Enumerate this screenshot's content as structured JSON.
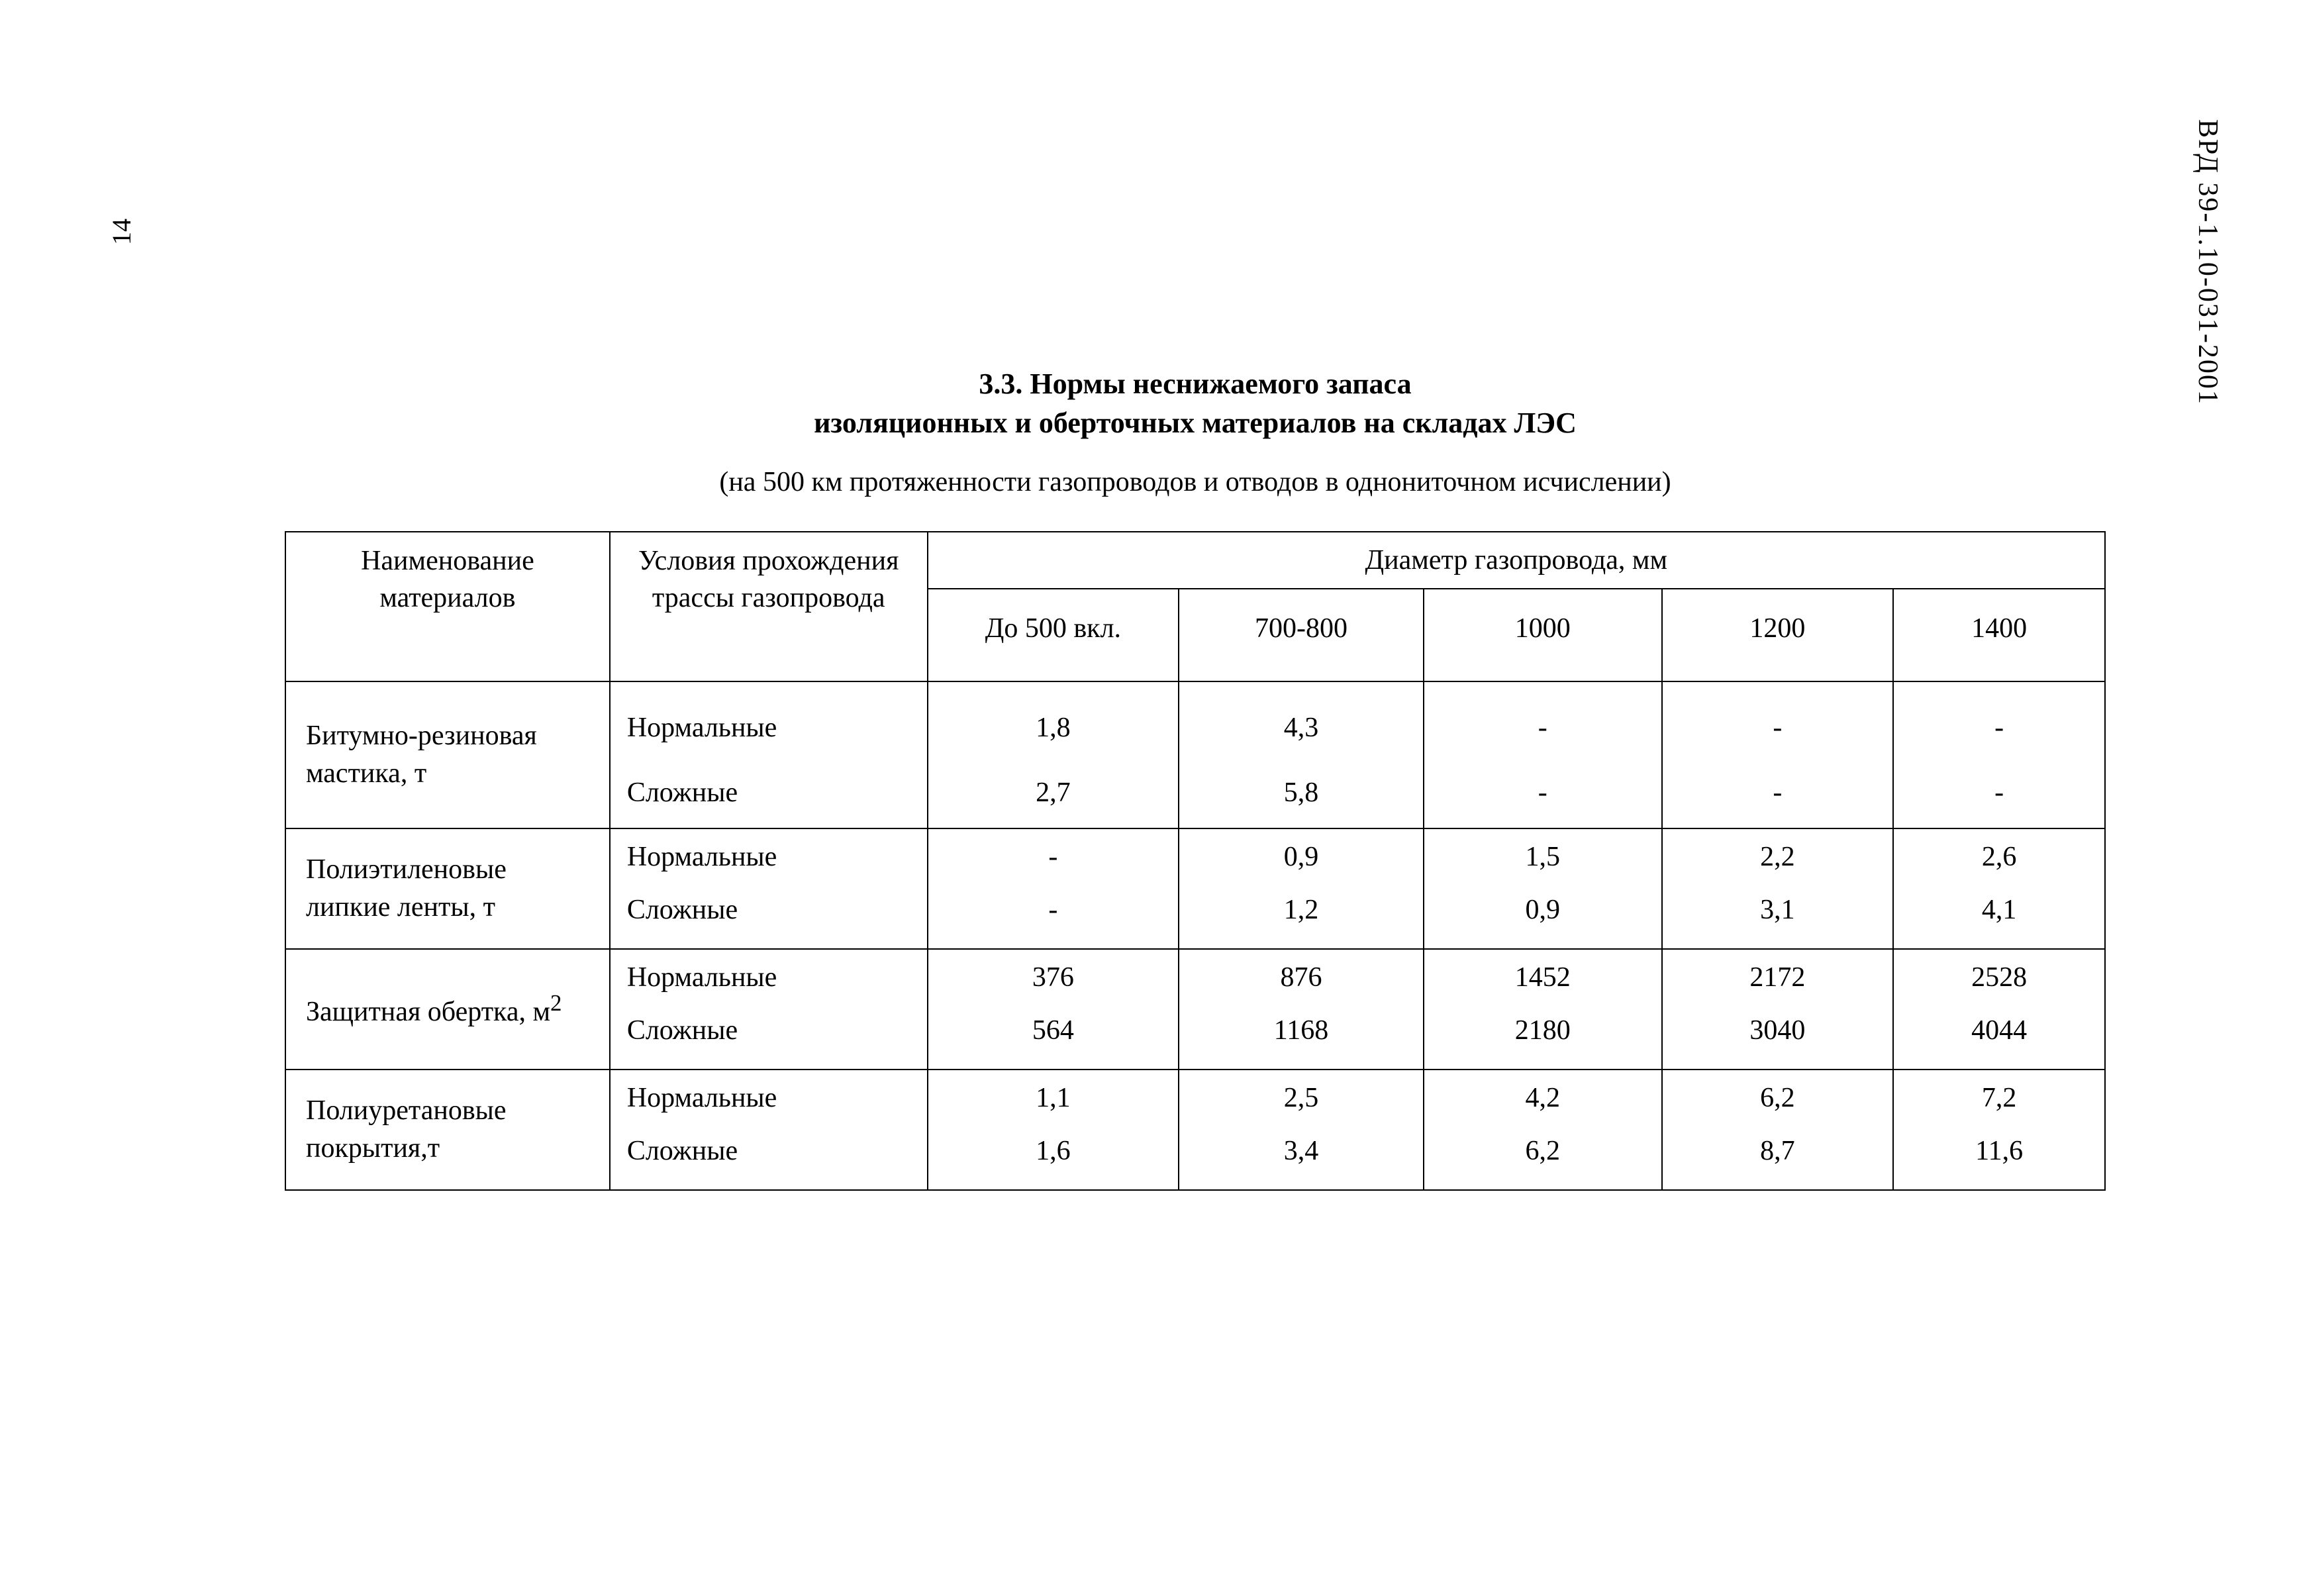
{
  "page_number": "14",
  "doc_code": "ВРД 39-1.10-031-2001",
  "title_line1": "3.3. Нормы неснижаемого запаса",
  "title_line2": "изоляционных  и  оберточных материалов на складах ЛЭС",
  "subtitle": "(на 500 км протяженности газопроводов и отводов в однониточном исчислении)",
  "table": {
    "header_col1": "Наименование материалов",
    "header_col2": "Условия прохождения трассы газопровода",
    "header_group": "Диаметр газопровода,  мм",
    "diam_cols": [
      "До 500 вкл.",
      "700-800",
      "1000",
      "1200",
      "1400"
    ],
    "cond_labels": [
      "Нормальные",
      "Сложные"
    ],
    "rows": [
      {
        "name": "Битумно-резиновая мастика, т",
        "tall": true,
        "vals": [
          [
            "1,8",
            "4,3",
            "-",
            "-",
            "-"
          ],
          [
            "2,7",
            "5,8",
            "-",
            "-",
            "-"
          ]
        ]
      },
      {
        "name": "Полиэтиленовые липкие ленты, т",
        "tall": false,
        "vals": [
          [
            "-",
            "0,9",
            "1,5",
            "2,2",
            "2,6"
          ],
          [
            "-",
            "1,2",
            "0,9",
            "3,1",
            "4,1"
          ]
        ]
      },
      {
        "name_html": "Защитная обертка, м<sup>2</sup>",
        "name": "Защитная обертка, м2",
        "tall": false,
        "vals": [
          [
            "376",
            "876",
            "1452",
            "2172",
            "2528"
          ],
          [
            "564",
            "1168",
            "2180",
            "3040",
            "4044"
          ]
        ]
      },
      {
        "name": "Полиуретановые покрытия,т",
        "tall": false,
        "vals": [
          [
            "1,1",
            "2,5",
            "4,2",
            "6,2",
            "7,2"
          ],
          [
            "1,6",
            "3,4",
            "6,2",
            "8,7",
            "11,6"
          ]
        ]
      }
    ]
  }
}
